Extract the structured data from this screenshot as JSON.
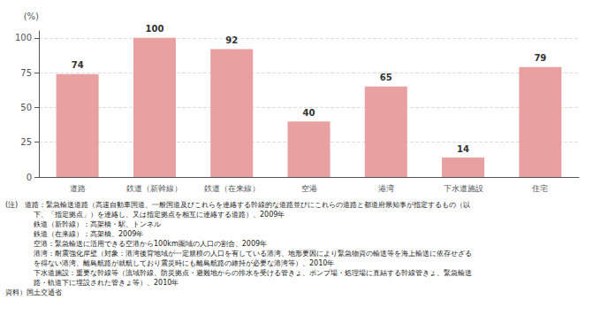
{
  "chart_data": {
    "type": "bar",
    "ylabel": "(%)",
    "categories": [
      "道路",
      "鉄道（新幹線）",
      "鉄道（在来線）",
      "空港",
      "港湾",
      "下水道施設",
      "住宅"
    ],
    "values": [
      74,
      100,
      92,
      40,
      65,
      14,
      79
    ],
    "color": "#e8a0a0",
    "ylim": [
      0,
      105
    ],
    "yticks": [
      0,
      25,
      50,
      75,
      100
    ],
    "grid": true,
    "data_labels": true,
    "annotations": [
      "(注)　道路：緊急輸送道路（高速自動車国道、一般国道及びこれらを連絡する幹線的な道路並びにこれらの道路と都道府県知事が指定するもの（以",
      "　　　　下、「指定拠点」）を連絡し、又は指定拠点を相互に連絡する道路）、2009年",
      "　　　　鉄道（新幹線）：高架橋・駅、トンネル",
      "　　　　鉄道（在来線）：高架橋、2009年",
      "　　　　空港：緊急輸送に活用できる空港から100km圏域の人口の割合、2009年",
      "　　　　港湾：耐震強化岸壁（対象：港湾後背地域が一定規模の人口を有している港湾、地形要因により緊急物資の輸送等を海上輸送に依存せざる",
      "　　　　を得ない港湾、離島航路が就航しており震災時にも離島航路の維持が必要な港湾等）、2010年",
      "　　　　下水道施設：重要な幹線等（流域幹線、防災拠点・避難地からの排水を受ける管きょ、ポンプ場・処理場に直結する幹線管きょ、緊急輸送",
      "　　　　路・軌道下に埋設された管きょ等）、2010年",
      "資料）国土交通省"
    ]
  }
}
